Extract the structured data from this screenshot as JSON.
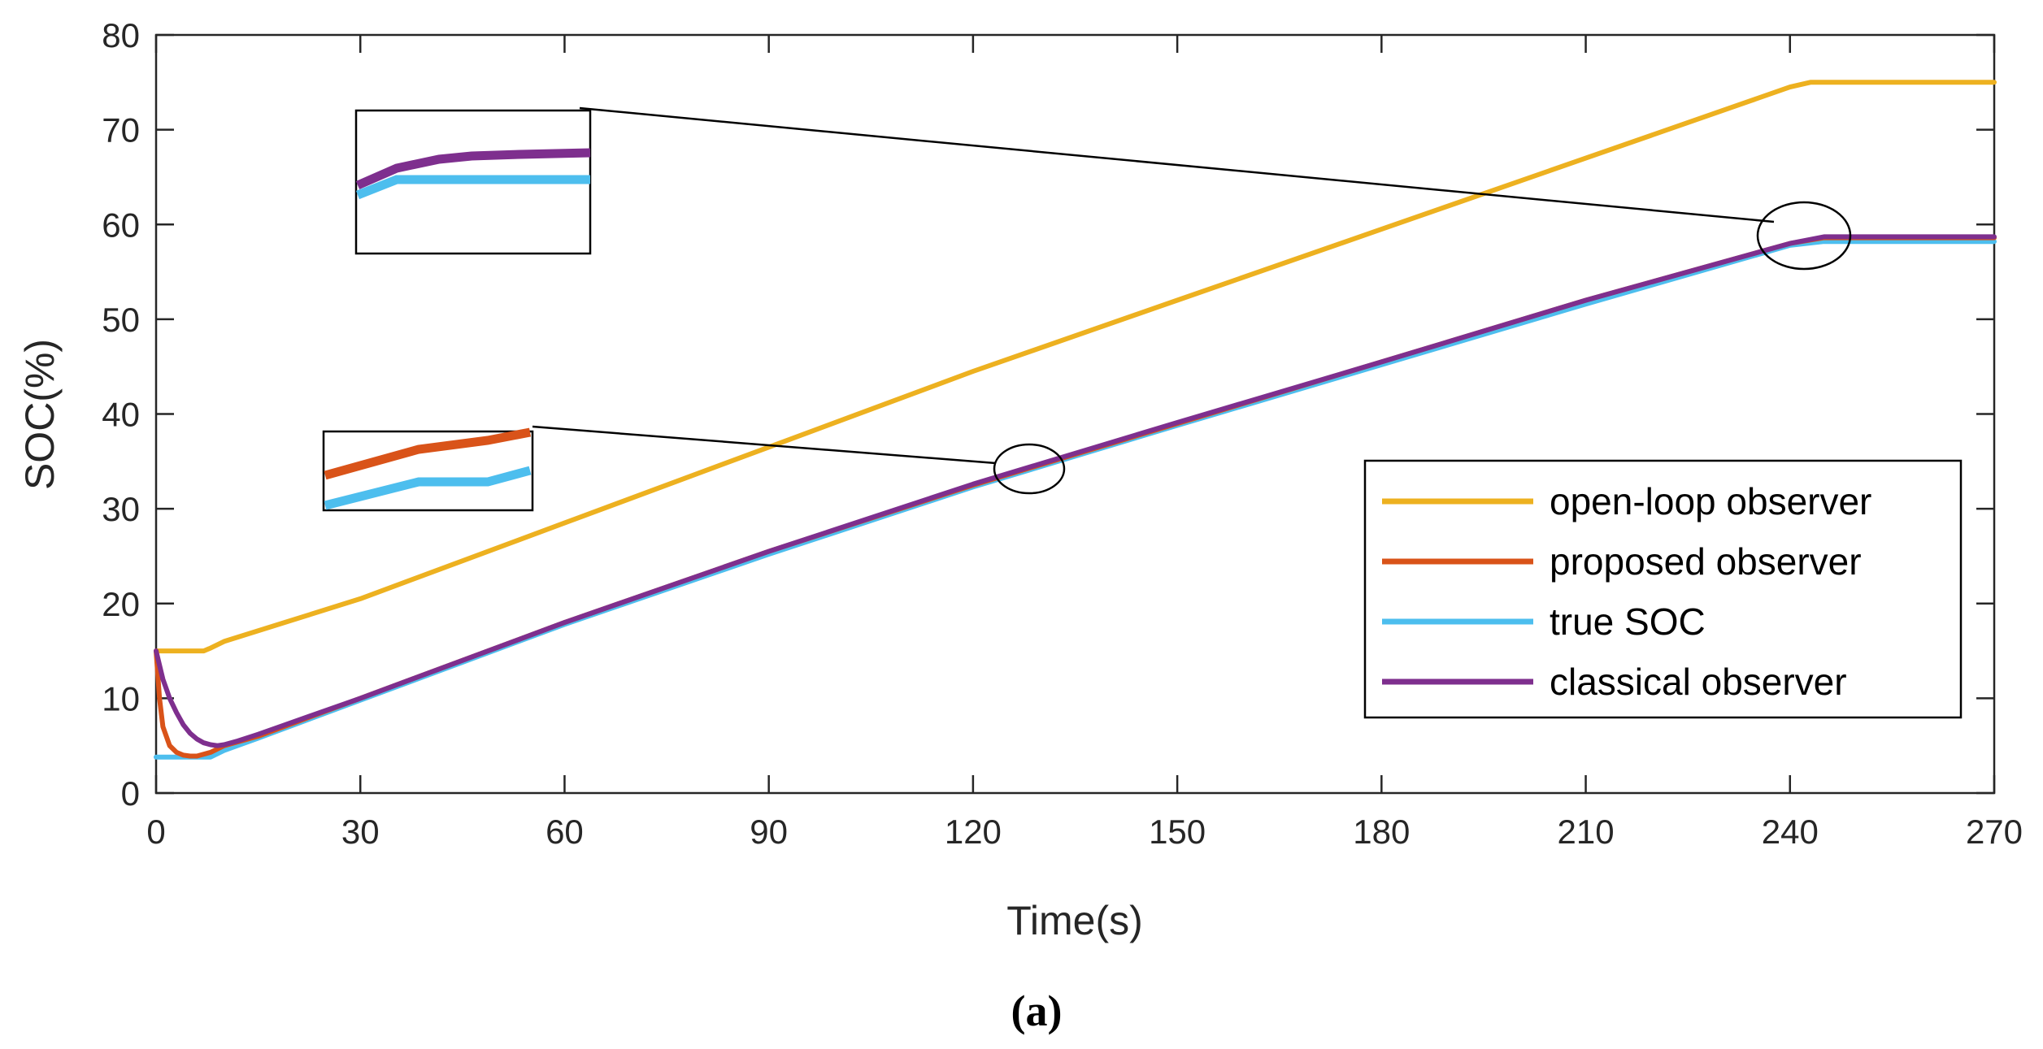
{
  "chart_data": {
    "type": "line",
    "title": "",
    "xlabel": "Time(s)",
    "ylabel": "SOC(%)",
    "caption": "(a)",
    "xlim": [
      0,
      270
    ],
    "ylim": [
      0,
      80
    ],
    "xticks": [
      0,
      30,
      60,
      90,
      120,
      150,
      180,
      210,
      240,
      270
    ],
    "yticks": [
      0,
      10,
      20,
      30,
      40,
      50,
      60,
      70,
      80
    ],
    "legend_position": "right",
    "series": [
      {
        "name": "open-loop observer",
        "color": "#EDB120",
        "x": [
          0,
          7,
          8,
          10,
          30,
          60,
          90,
          120,
          150,
          180,
          210,
          240,
          243,
          270
        ],
        "y": [
          15,
          15,
          15.3,
          16,
          20.5,
          28.5,
          36.5,
          44.5,
          52,
          59.5,
          67,
          74.5,
          75,
          75
        ]
      },
      {
        "name": "proposed observer",
        "color": "#D95319",
        "x": [
          0,
          0.5,
          1,
          2,
          3,
          4,
          5,
          6,
          8,
          10,
          15,
          30,
          60,
          90,
          120,
          150,
          180,
          210,
          240,
          245,
          270
        ],
        "y": [
          15,
          10,
          7,
          5,
          4.3,
          4,
          3.9,
          3.9,
          4.3,
          5,
          6,
          10,
          18,
          25.5,
          32.5,
          39,
          45.5,
          52,
          58,
          58.6,
          58.6
        ]
      },
      {
        "name": "true SOC",
        "color": "#4DBEEE",
        "x": [
          0,
          8,
          10,
          15,
          30,
          60,
          90,
          120,
          150,
          180,
          210,
          240,
          245,
          270
        ],
        "y": [
          3.8,
          3.8,
          4.5,
          5.8,
          9.8,
          17.8,
          25.2,
          32.3,
          38.8,
          45.2,
          51.6,
          57.8,
          58.2,
          58.2
        ]
      },
      {
        "name": "classical observer",
        "color": "#7E2F8E",
        "x": [
          0,
          1,
          2,
          3,
          4,
          5,
          6,
          7,
          8,
          9,
          10,
          12,
          15,
          30,
          60,
          90,
          120,
          150,
          180,
          210,
          240,
          245,
          270
        ],
        "y": [
          15,
          12,
          10,
          8.5,
          7.2,
          6.3,
          5.7,
          5.3,
          5.1,
          5,
          5.1,
          5.5,
          6.2,
          10,
          18,
          25.5,
          32.6,
          39.1,
          45.5,
          52,
          58,
          58.7,
          58.7
        ]
      }
    ]
  }
}
